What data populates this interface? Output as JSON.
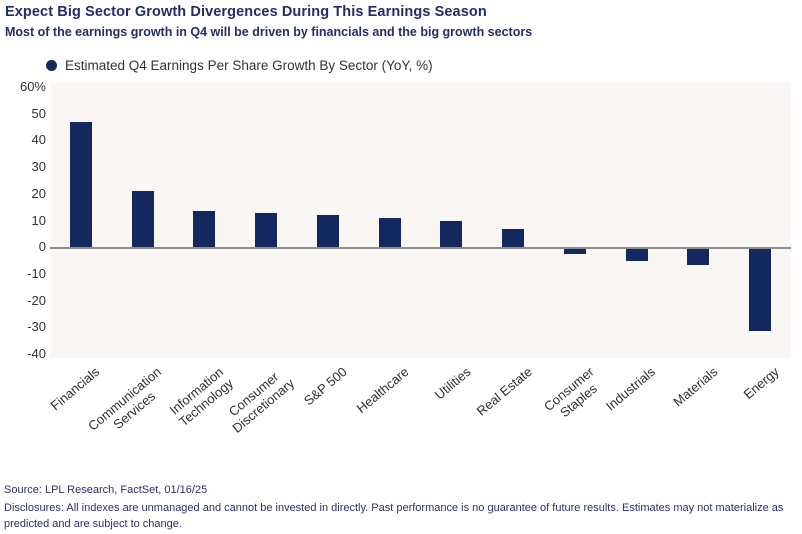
{
  "header": {
    "title": "Expect Big Sector Growth Divergences During This Earnings Season",
    "subtitle": "Most of the earnings growth in Q4 will be driven by financials and the big growth sectors"
  },
  "legend": {
    "label": "Estimated Q4 Earnings Per Share Growth By Sector (YoY, %)"
  },
  "chart_data": {
    "type": "bar",
    "title": "Estimated Q4 Earnings Per Share Growth By Sector (YoY, %)",
    "categories": [
      "Financials",
      "Communication\nServices",
      "Information\nTechnology",
      "Consumer\nDiscretionary",
      "S&P 500",
      "Healthcare",
      "Utilities",
      "Real Estate",
      "Consumer\nStaples",
      "Industrials",
      "Materials",
      "Energy"
    ],
    "values": [
      47,
      21,
      13.5,
      13,
      12,
      11,
      10,
      7,
      -2,
      -4.5,
      -6,
      -31
    ],
    "xlabel": "",
    "ylabel": "",
    "ylim": [
      -40,
      60
    ],
    "ytick_step": 10,
    "ytick_top_suffix": "%",
    "grid": false,
    "legend_position": "top-left",
    "bar_color": "#12285e",
    "plot_bg": "#faf6f3",
    "zero_line_color": "#8c8c8c"
  },
  "footer": {
    "source": "Source: LPL Research, FactSet, 01/16/25",
    "disclosures": "Disclosures: All indexes are unmanaged and cannot be invested in directly. Past performance is no guarantee of future results. Estimates may not materialize as predicted and are subject to change."
  }
}
